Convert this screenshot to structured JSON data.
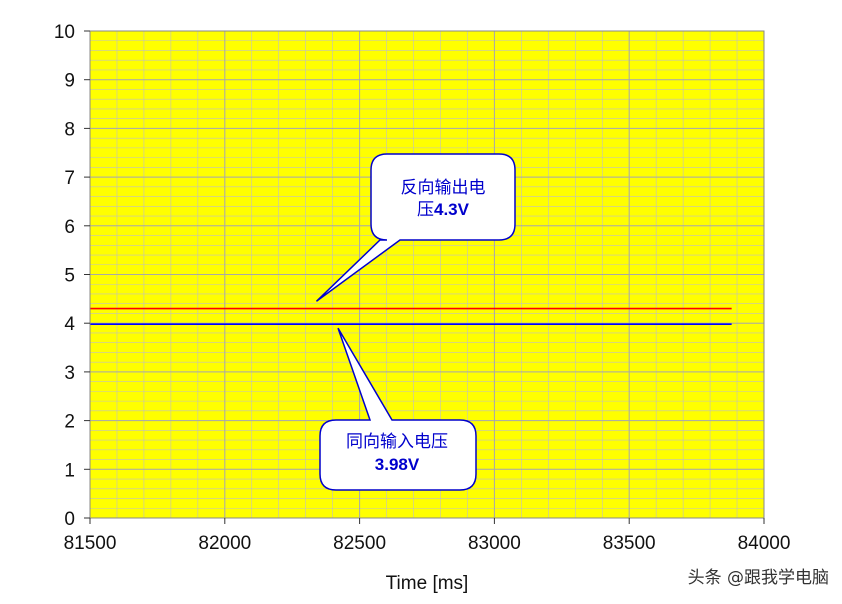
{
  "chart_data": {
    "type": "line",
    "xlabel": "Time [ms]",
    "ylabel": "",
    "xlim": [
      81500,
      84000
    ],
    "ylim": [
      0,
      10
    ],
    "x_ticks": [
      81500,
      82000,
      82500,
      83000,
      83500,
      84000
    ],
    "y_ticks": [
      0,
      1,
      2,
      3,
      4,
      5,
      6,
      7,
      8,
      9,
      10
    ],
    "grid": true,
    "colors": {
      "background": "#ffff00",
      "grid": "#c0c0c0",
      "series_red": "#ff0000",
      "series_blue": "#0000ff",
      "callout_border": "#0000cc",
      "callout_text": "#0000cc"
    },
    "series": [
      {
        "color": "#ff0000",
        "x": [
          81500,
          83880
        ],
        "y": [
          4.3,
          4.3
        ]
      },
      {
        "color": "#0000ff",
        "x": [
          81500,
          83880
        ],
        "y": [
          3.98,
          3.98
        ]
      }
    ],
    "annotations": [
      {
        "line1": "反向输出电",
        "line2_prefix": "压",
        "line2_value": "4.3V",
        "pointer": {
          "x": 82340,
          "y": 4.45
        }
      },
      {
        "line1": "同向输入电压",
        "line2_prefix": "",
        "line2_value": "3.98V",
        "pointer": {
          "x": 82420,
          "y": 3.9
        }
      }
    ]
  },
  "watermark": "头条 @跟我学电脑"
}
